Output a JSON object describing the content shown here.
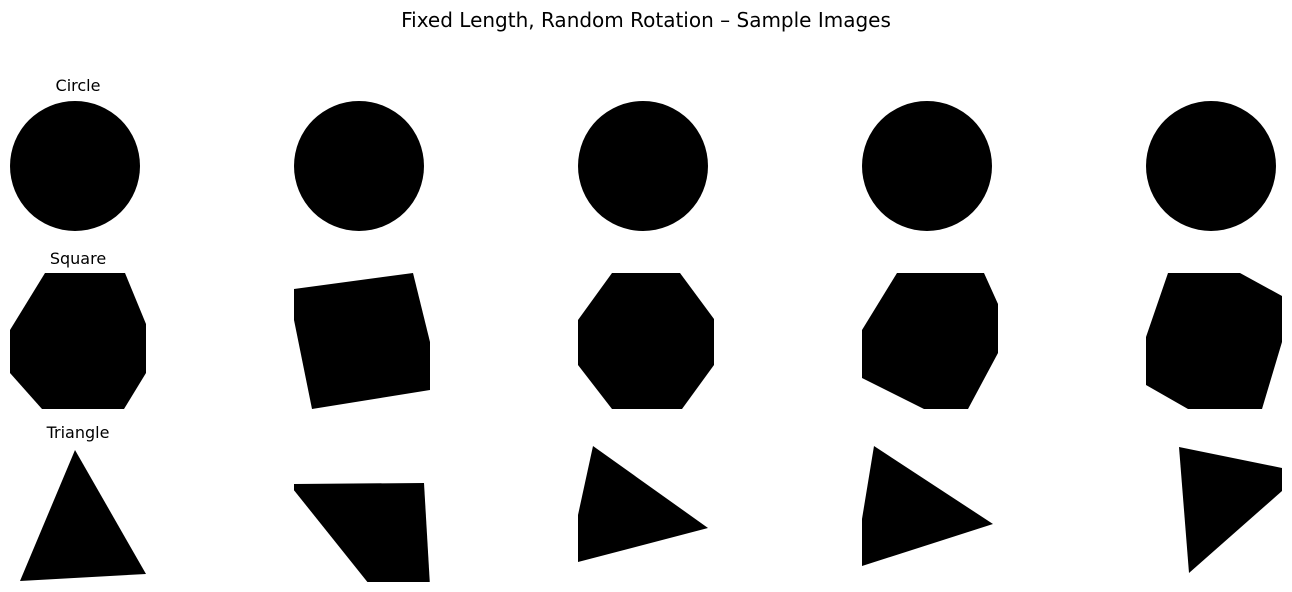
{
  "figure": {
    "title": "Fixed Length, Random Rotation – Sample Images",
    "fill_color": "#000000",
    "background_color": "#ffffff",
    "grid": {
      "rows": 3,
      "columns": 5
    },
    "rows": [
      {
        "label": "Circle",
        "shape": "circle",
        "samples": [
          {
            "kind": "circle"
          },
          {
            "kind": "circle"
          },
          {
            "kind": "circle"
          },
          {
            "kind": "circle"
          },
          {
            "kind": "circle"
          }
        ]
      },
      {
        "label": "Square",
        "shape": "square",
        "samples": [
          {
            "kind": "square"
          },
          {
            "kind": "square"
          },
          {
            "kind": "square"
          },
          {
            "kind": "square"
          },
          {
            "kind": "square"
          }
        ]
      },
      {
        "label": "Triangle",
        "shape": "triangle",
        "samples": [
          {
            "kind": "triangle"
          },
          {
            "kind": "triangle"
          },
          {
            "kind": "triangle"
          },
          {
            "kind": "triangle"
          },
          {
            "kind": "triangle"
          }
        ]
      }
    ]
  }
}
